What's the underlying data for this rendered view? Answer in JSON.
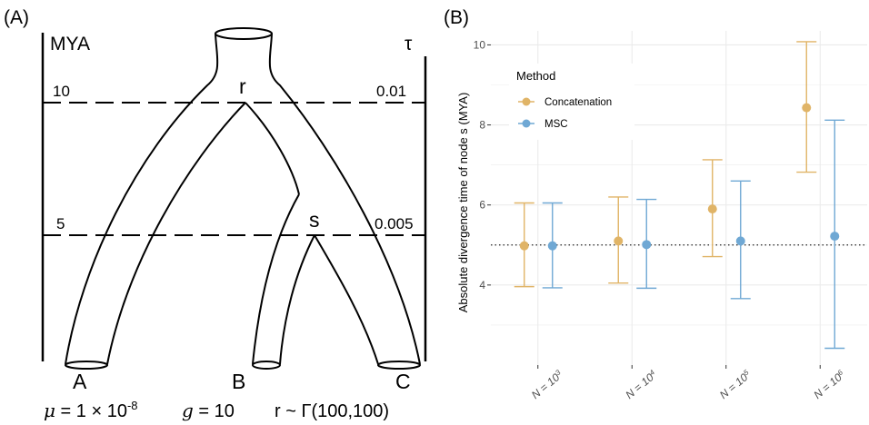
{
  "panel_a": {
    "label": "(A)",
    "left_axis_title": "MYA",
    "right_axis_title": "τ",
    "levels": [
      {
        "mya": "10",
        "tau": "0.01"
      },
      {
        "mya": "5",
        "tau": "0.005"
      }
    ],
    "nodes": {
      "root": "r",
      "internal": "s"
    },
    "leaves": [
      "A",
      "B",
      "C"
    ],
    "params": {
      "mu_symbol": "μ",
      "mu_value": " = 1 × 10",
      "mu_exp": "-8",
      "g_symbol": "g",
      "g_value": " = 10",
      "rate": "r ~ Γ(100,100)"
    }
  },
  "panel_b": {
    "label": "(B)"
  },
  "colors": {
    "concatenation": "#E0B467",
    "msc": "#6FA8D4",
    "grid": "#ebebeb",
    "reference": "#222222"
  },
  "chart_data": {
    "type": "scatter",
    "style": "point-with-error-bars",
    "categories": [
      {
        "prefix": "N = 10",
        "exp": "3"
      },
      {
        "prefix": "N = 10",
        "exp": "4"
      },
      {
        "prefix": "N = 10",
        "exp": "5"
      },
      {
        "prefix": "N = 10",
        "exp": "6"
      }
    ],
    "ylabel": "Absolute divergence time of node s (MYA)",
    "ylim": [
      2.0,
      10.35
    ],
    "yticks": [
      4,
      6,
      8,
      10
    ],
    "grid": true,
    "reference_line": 5.0,
    "legend": {
      "title": "Method",
      "position": "top-left"
    },
    "series": [
      {
        "name": "Concatenation",
        "color_key": "concatenation",
        "values": [
          4.98,
          5.1,
          5.9,
          8.43
        ],
        "lower": [
          3.96,
          4.05,
          4.71,
          6.82
        ],
        "upper": [
          6.05,
          6.2,
          7.13,
          10.08
        ]
      },
      {
        "name": "MSC",
        "color_key": "msc",
        "values": [
          4.98,
          5.01,
          5.1,
          5.22
        ],
        "lower": [
          3.93,
          3.92,
          3.66,
          2.42
        ],
        "upper": [
          6.05,
          6.14,
          6.6,
          8.12
        ]
      }
    ]
  }
}
